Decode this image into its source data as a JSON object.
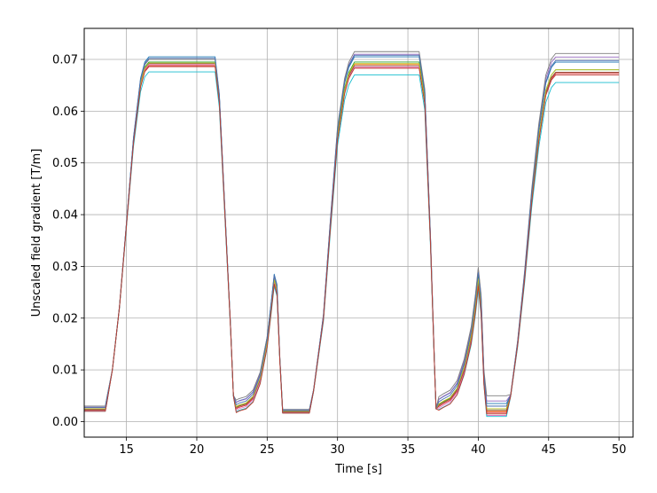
{
  "chart_data": {
    "type": "line",
    "title": "",
    "xlabel": "Time [s]",
    "ylabel": "Unscaled field gradient [T/m]",
    "xlim": [
      12,
      51
    ],
    "ylim": [
      -0.003,
      0.076
    ],
    "xticks": [
      15,
      20,
      25,
      30,
      35,
      40,
      45,
      50
    ],
    "xtick_labels": [
      "15",
      "20",
      "25",
      "30",
      "35",
      "40",
      "45",
      "50"
    ],
    "yticks": [
      0.0,
      0.01,
      0.02,
      0.03,
      0.04,
      0.05,
      0.06,
      0.07
    ],
    "ytick_labels": [
      "0.00",
      "0.01",
      "0.02",
      "0.03",
      "0.04",
      "0.05",
      "0.06",
      "0.07"
    ],
    "grid": true,
    "legend": "none",
    "base_curve": {
      "x": [
        12.0,
        13.5,
        13.6,
        14.0,
        14.5,
        15.0,
        15.5,
        16.0,
        16.3,
        16.6,
        17.0,
        21.3,
        21.6,
        22.0,
        22.4,
        22.6,
        22.8,
        23.0,
        23.5,
        24.0,
        24.5,
        25.0,
        25.3,
        25.5,
        25.7,
        25.9,
        26.1,
        27.0,
        28.0,
        28.3,
        29.0,
        29.5,
        30.0,
        30.5,
        30.8,
        31.2,
        35.8,
        36.2,
        36.6,
        36.9,
        37.0,
        37.2,
        37.5,
        38.0,
        38.5,
        39.0,
        39.5,
        39.8,
        40.0,
        40.2,
        40.4,
        40.6,
        41.0,
        42.0,
        42.3,
        42.8,
        43.3,
        43.8,
        44.3,
        44.8,
        45.2,
        45.5,
        50.0
      ],
      "y": [
        0.0025,
        0.0025,
        0.004,
        0.01,
        0.022,
        0.038,
        0.054,
        0.065,
        0.068,
        0.069,
        0.069,
        0.069,
        0.062,
        0.04,
        0.018,
        0.005,
        0.0025,
        0.0028,
        0.0032,
        0.0045,
        0.008,
        0.015,
        0.022,
        0.027,
        0.025,
        0.012,
        0.002,
        0.002,
        0.002,
        0.006,
        0.02,
        0.038,
        0.055,
        0.064,
        0.067,
        0.069,
        0.069,
        0.062,
        0.035,
        0.01,
        0.0025,
        0.003,
        0.0035,
        0.0042,
        0.006,
        0.01,
        0.016,
        0.022,
        0.027,
        0.022,
        0.008,
        0.002,
        0.002,
        0.002,
        0.005,
        0.015,
        0.028,
        0.043,
        0.055,
        0.064,
        0.067,
        0.068,
        0.068
      ]
    },
    "series": [
      {
        "color": "#1f77b4",
        "plateaus": [
          0.0705,
          0.0705,
          0.0705
        ],
        "lows": [
          0.003,
          0.004,
          0.0035
        ],
        "peaks": [
          0.0285,
          0.029
        ]
      },
      {
        "color": "#ff7f0e",
        "plateaus": [
          0.069,
          0.069,
          0.0685
        ],
        "lows": [
          0.0025,
          0.003,
          0.002
        ],
        "peaks": [
          0.027,
          0.027
        ]
      },
      {
        "color": "#2ca02c",
        "plateaus": [
          0.0695,
          0.0695,
          0.069
        ],
        "lows": [
          0.0023,
          0.003,
          0.0025
        ],
        "peaks": [
          0.0275,
          0.028
        ]
      },
      {
        "color": "#d62728",
        "plateaus": [
          0.0688,
          0.0685,
          0.0683
        ],
        "lows": [
          0.0022,
          0.0028,
          0.0018
        ],
        "peaks": [
          0.0268,
          0.0265
        ]
      },
      {
        "color": "#9467bd",
        "plateaus": [
          0.07,
          0.071,
          0.0715
        ],
        "lows": [
          0.0028,
          0.004,
          0.004
        ],
        "peaks": [
          0.028,
          0.0295
        ]
      },
      {
        "color": "#8c564b",
        "plateaus": [
          0.0692,
          0.0688,
          0.0685
        ],
        "lows": [
          0.0024,
          0.003,
          0.0022
        ],
        "peaks": [
          0.0272,
          0.027
        ]
      },
      {
        "color": "#e377c2",
        "plateaus": [
          0.069,
          0.0685,
          0.068
        ],
        "lows": [
          0.0021,
          0.0025,
          0.0012
        ],
        "peaks": [
          0.0268,
          0.0262
        ]
      },
      {
        "color": "#7f7f7f",
        "plateaus": [
          0.07,
          0.0715,
          0.0722
        ],
        "lows": [
          0.003,
          0.0045,
          0.005
        ],
        "peaks": [
          0.0282,
          0.0298
        ]
      },
      {
        "color": "#bcbd22",
        "plateaus": [
          0.0693,
          0.0692,
          0.069
        ],
        "lows": [
          0.0025,
          0.0032,
          0.0025
        ],
        "peaks": [
          0.0274,
          0.0276
        ]
      },
      {
        "color": "#17becf",
        "plateaus": [
          0.0676,
          0.067,
          0.0665
        ],
        "lows": [
          0.002,
          0.0022,
          0.001
        ],
        "peaks": [
          0.0262,
          0.0255
        ]
      },
      {
        "color": "#4a6fb0",
        "plateaus": [
          0.0702,
          0.0708,
          0.0708
        ],
        "lows": [
          0.0027,
          0.0035,
          0.003
        ],
        "peaks": [
          0.0283,
          0.0288
        ]
      },
      {
        "color": "#c0392b",
        "plateaus": [
          0.0686,
          0.0683,
          0.068
        ],
        "lows": [
          0.002,
          0.002,
          0.0015
        ],
        "peaks": [
          0.0266,
          0.0262
        ]
      }
    ]
  }
}
